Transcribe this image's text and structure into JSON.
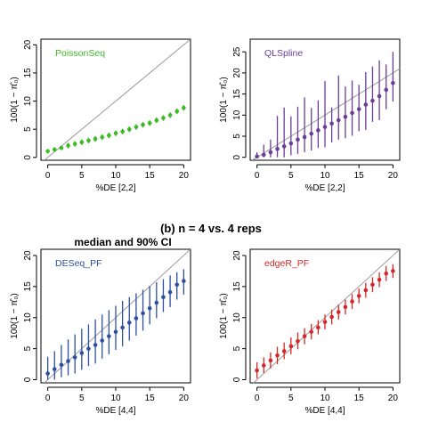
{
  "section_title": "(b) n = 4 vs. 4 reps",
  "subtitle": "median and 90% CI",
  "y_axis_label": "100(1 − π̂₀)",
  "chart_data": [
    {
      "type": "scatter",
      "legend": "PoissonSeq",
      "color": "#3dbb25",
      "xlabel": "%DE [2,2]",
      "xlim": [
        -1,
        21
      ],
      "ylim": [
        -0.5,
        21
      ],
      "xticks": [
        0,
        5,
        10,
        15,
        20
      ],
      "yticks": [
        0,
        5,
        10,
        15,
        20
      ],
      "x": [
        0,
        1,
        2,
        3,
        4,
        5,
        6,
        7,
        8,
        9,
        10,
        11,
        12,
        13,
        14,
        15,
        16,
        17,
        18,
        19,
        20
      ],
      "median": [
        1.1,
        1.4,
        1.7,
        2.1,
        2.4,
        2.7,
        3.0,
        3.3,
        3.6,
        3.9,
        4.3,
        4.6,
        5.0,
        5.4,
        5.8,
        6.1,
        6.6,
        7.0,
        7.5,
        8.2,
        8.8
      ],
      "lower": [
        0.7,
        1.0,
        1.3,
        1.6,
        1.9,
        2.2,
        2.5,
        2.8,
        3.1,
        3.4,
        3.8,
        4.1,
        4.5,
        4.9,
        5.3,
        5.6,
        6.1,
        6.5,
        7.0,
        7.7,
        8.3
      ],
      "upper": [
        1.5,
        1.8,
        2.1,
        2.6,
        2.9,
        3.2,
        3.5,
        3.8,
        4.1,
        4.4,
        4.8,
        5.1,
        5.5,
        5.9,
        6.3,
        6.6,
        7.1,
        7.5,
        8.0,
        8.7,
        9.3
      ]
    },
    {
      "type": "scatter",
      "legend": "QLSpline",
      "color": "#6a3d9a",
      "xlabel": "%DE [2,2]",
      "xlim": [
        -1,
        21
      ],
      "ylim": [
        -0.7,
        28
      ],
      "xticks": [
        0,
        5,
        10,
        15,
        20
      ],
      "yticks": [
        0,
        5,
        10,
        15,
        20,
        25
      ],
      "x": [
        0,
        1,
        2,
        3,
        4,
        5,
        6,
        7,
        8,
        9,
        10,
        11,
        12,
        13,
        14,
        15,
        16,
        17,
        18,
        19,
        20
      ],
      "median": [
        0.2,
        0.6,
        1.2,
        2.0,
        2.6,
        3.3,
        4.2,
        4.8,
        5.6,
        6.4,
        7.2,
        8.0,
        8.8,
        9.6,
        10.5,
        11.4,
        12.5,
        13.4,
        14.5,
        16.0,
        17.6
      ],
      "lower": [
        0,
        0,
        0,
        0,
        0,
        0.5,
        0.8,
        1.2,
        1.6,
        2.2,
        2.4,
        3.5,
        4.2,
        4.5,
        5.1,
        6.2,
        6.5,
        8.4,
        8.8,
        11.4,
        13.2
      ],
      "upper": [
        1.2,
        3.0,
        4.2,
        9.8,
        11.8,
        9.7,
        12.0,
        14.2,
        11.7,
        13.5,
        18.1,
        11.8,
        19.4,
        16.8,
        18.2,
        17.2,
        20.2,
        21.5,
        23.0,
        22.0,
        25.0
      ]
    },
    {
      "type": "scatter",
      "legend": "DESeq_PF",
      "color": "#2c4fa3",
      "xlabel": "%DE [4,4]",
      "xlim": [
        -1,
        21
      ],
      "ylim": [
        -0.5,
        21
      ],
      "xticks": [
        0,
        5,
        10,
        15,
        20
      ],
      "yticks": [
        0,
        5,
        10,
        15,
        20
      ],
      "x": [
        0,
        1,
        2,
        3,
        4,
        5,
        6,
        7,
        8,
        9,
        10,
        11,
        12,
        13,
        14,
        15,
        16,
        17,
        18,
        19,
        20
      ],
      "median": [
        1.0,
        1.7,
        2.4,
        3.0,
        3.6,
        4.3,
        5.0,
        5.6,
        6.3,
        7.0,
        7.7,
        8.4,
        9.2,
        9.9,
        10.7,
        11.5,
        12.4,
        13.3,
        14.1,
        15.3,
        15.9
      ],
      "lower": [
        0,
        0,
        0.4,
        0.7,
        1.0,
        1.6,
        2.2,
        2.6,
        3.4,
        4.1,
        4.8,
        5.4,
        6.3,
        7.1,
        7.9,
        8.9,
        9.9,
        10.9,
        11.7,
        12.9,
        13.7
      ],
      "upper": [
        3.7,
        4.6,
        5.6,
        6.5,
        7.3,
        8.2,
        8.9,
        9.7,
        10.5,
        11.2,
        11.9,
        12.7,
        13.3,
        13.9,
        14.5,
        15.1,
        15.7,
        16.2,
        16.8,
        17.3,
        17.8
      ]
    },
    {
      "type": "scatter",
      "legend": "edgeR_PF",
      "color": "#d62728",
      "xlabel": "%DE [4,4]",
      "xlim": [
        -1,
        21
      ],
      "ylim": [
        -0.5,
        21
      ],
      "xticks": [
        0,
        5,
        10,
        15,
        20
      ],
      "yticks": [
        0,
        5,
        10,
        15,
        20
      ],
      "x": [
        0,
        1,
        2,
        3,
        4,
        5,
        6,
        7,
        8,
        9,
        10,
        11,
        12,
        13,
        14,
        15,
        16,
        17,
        18,
        19,
        20
      ],
      "median": [
        1.5,
        2.3,
        3.1,
        3.9,
        4.6,
        5.4,
        6.2,
        7.0,
        7.7,
        8.4,
        9.3,
        10.1,
        10.9,
        11.7,
        12.6,
        13.5,
        14.4,
        15.3,
        16.1,
        17.1,
        17.5
      ],
      "lower": [
        0.2,
        1.1,
        1.8,
        2.5,
        3.3,
        4.1,
        4.9,
        5.7,
        6.5,
        7.3,
        8.1,
        8.9,
        9.7,
        10.5,
        11.4,
        12.3,
        13.2,
        14.1,
        14.9,
        15.9,
        16.4
      ],
      "upper": [
        2.8,
        3.6,
        4.4,
        5.3,
        6.0,
        6.8,
        7.6,
        8.3,
        9.0,
        9.6,
        10.5,
        11.3,
        12.1,
        12.9,
        13.8,
        14.7,
        15.6,
        16.5,
        17.3,
        18.3,
        18.6
      ]
    }
  ]
}
